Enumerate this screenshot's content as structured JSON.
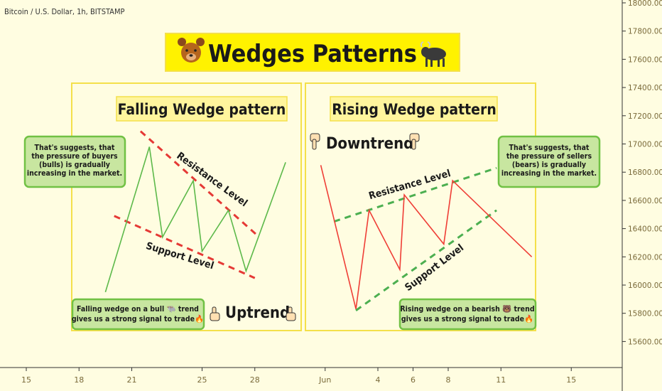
{
  "header": {
    "symbol_text": "Bitcoin / U.S. Dollar, 1h, BITSTAMP"
  },
  "title": {
    "text": "Wedges Patterns",
    "left_icon": "bear-emoji",
    "right_icon": "bull-emoji"
  },
  "colors": {
    "background": "#FFFDE1",
    "panel_border": "#F4E04A",
    "title_bg": "#FFF200",
    "note_bg": "#C8E6A0",
    "note_border": "#71C144",
    "bullish_line": "#5DB94A",
    "bearish_line": "#EF3E36",
    "resistance_dash": "#E53935",
    "support_dash_green": "#4CAF50",
    "text_dark": "#1a1a1a",
    "axis_text": "#7A6A3A"
  },
  "panels": {
    "falling": {
      "title": "Falling Wedge pattern",
      "resistance_label": "Resistance Level",
      "support_label": "Support Level",
      "note": [
        "That's suggests, that",
        "the pressure of buyers",
        "(bulls) is gradually",
        "increasing in the market."
      ],
      "bottom_note": [
        "Falling wedge on a bull 🐃 trend",
        "gives us a strong signal to trade🔥"
      ],
      "trend_label": "Uptrend",
      "trend_icon": "pointing-up-icon"
    },
    "rising": {
      "title": "Rising Wedge pattern",
      "resistance_label": "Resistance Level",
      "support_label": "Support Level",
      "note": [
        "That's suggests, that",
        "the pressure of sellers",
        "(bears) is gradually",
        "increasing in the market."
      ],
      "bottom_note": [
        "Rising wedge on a bearish 🐻 trend",
        "gives us a strong signal to trade🔥"
      ],
      "trend_label": "Downtrend",
      "trend_icon": "pointing-down-icon"
    }
  },
  "chart_data": {
    "type": "line",
    "title": "Wedges Patterns",
    "y_axis": {
      "ticks": [
        "18000.00",
        "17800.00",
        "17600.00",
        "17400.00",
        "17200.00",
        "17000.00",
        "16800.00",
        "16600.00",
        "16400.00",
        "16200.00",
        "16000.00",
        "15800.00",
        "15600.00"
      ],
      "ylim": [
        15500,
        18000
      ]
    },
    "x_axis": {
      "ticks": [
        "15",
        "18",
        "21",
        "25",
        "28",
        "Jun",
        "4",
        "6",
        "8",
        "11",
        "15"
      ]
    },
    "series": [
      {
        "panel": "falling",
        "color": "#5DB94A",
        "points": [
          {
            "x": "2020-05-19 12:00",
            "y": 15950
          },
          {
            "x": "2020-05-22 00:00",
            "y": 16980
          },
          {
            "x": "2020-05-22 18:00",
            "y": 16340
          },
          {
            "x": "2020-05-24 12:00",
            "y": 16740
          },
          {
            "x": "2020-05-25 00:00",
            "y": 16240
          },
          {
            "x": "2020-05-26 12:00",
            "y": 16530
          },
          {
            "x": "2020-05-27 12:00",
            "y": 16100
          },
          {
            "x": "2020-05-29 18:00",
            "y": 16870
          }
        ]
      },
      {
        "panel": "rising",
        "color": "#EF3E36",
        "points": [
          {
            "x": "2020-05-31 18:00",
            "y": 16850
          },
          {
            "x": "2020-06-02 18:00",
            "y": 15830
          },
          {
            "x": "2020-06-03 12:00",
            "y": 16530
          },
          {
            "x": "2020-06-05 06:00",
            "y": 16110
          },
          {
            "x": "2020-06-05 12:00",
            "y": 16640
          },
          {
            "x": "2020-06-07 18:00",
            "y": 16290
          },
          {
            "x": "2020-06-08 06:00",
            "y": 16740
          },
          {
            "x": "2020-06-12 18:00",
            "y": 16200
          }
        ]
      }
    ],
    "trendlines": [
      {
        "panel": "falling",
        "name": "Resistance Level",
        "color": "#E53935",
        "from": {
          "x": "2020-05-21 12:00",
          "y": 17090
        },
        "to": {
          "x": "2020-05-28 06:00",
          "y": 16340
        }
      },
      {
        "panel": "falling",
        "name": "Support Level",
        "color": "#E53935",
        "from": {
          "x": "2020-05-20 00:00",
          "y": 16490
        },
        "to": {
          "x": "2020-05-28 00:00",
          "y": 16050
        }
      },
      {
        "panel": "rising",
        "name": "Resistance Level",
        "color": "#4CAF50",
        "from": {
          "x": "2020-06-01 12:00",
          "y": 16450
        },
        "to": {
          "x": "2020-06-10 18:00",
          "y": 16830
        }
      },
      {
        "panel": "rising",
        "name": "Support Level",
        "color": "#4CAF50",
        "from": {
          "x": "2020-06-02 18:00",
          "y": 15820
        },
        "to": {
          "x": "2020-06-10 18:00",
          "y": 16530
        }
      }
    ]
  }
}
